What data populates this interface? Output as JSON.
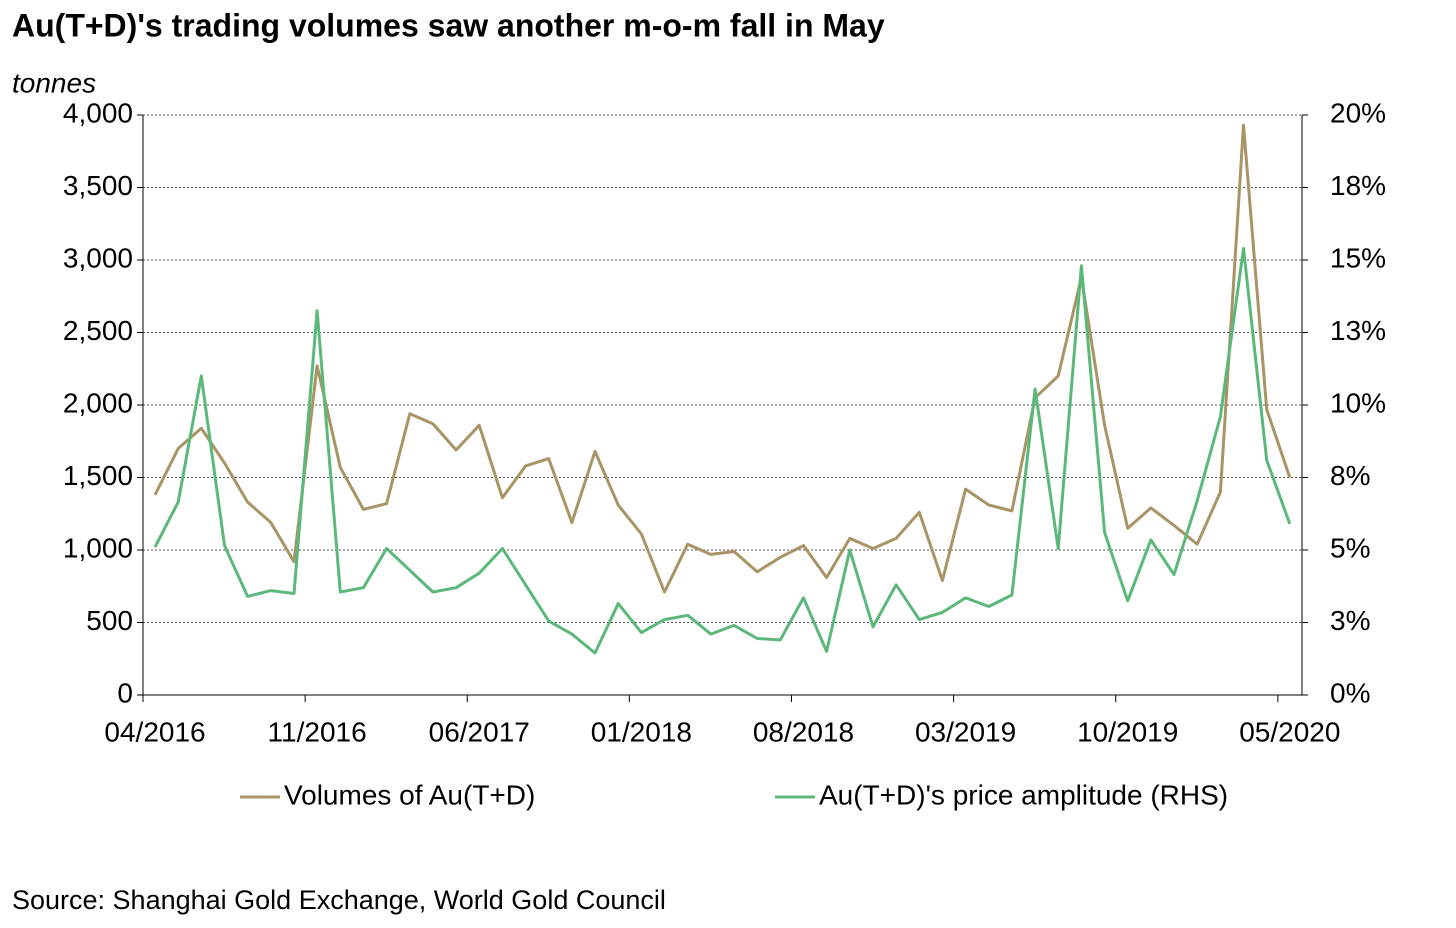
{
  "chart_data": {
    "type": "line",
    "title": "Au(T+D)'s trading volumes saw another m-o-m fall in May",
    "y_label": "tonnes",
    "source": "Source: Shanghai Gold Exchange, World Gold Council",
    "categories": [
      "04/2016",
      null,
      null,
      null,
      null,
      null,
      null,
      "11/2016",
      null,
      null,
      null,
      null,
      null,
      null,
      "06/2017",
      null,
      null,
      null,
      null,
      null,
      null,
      "01/2018",
      null,
      null,
      null,
      null,
      null,
      null,
      "08/2018",
      null,
      null,
      null,
      null,
      null,
      null,
      "03/2019",
      null,
      null,
      null,
      null,
      null,
      null,
      "10/2019",
      null,
      null,
      null,
      null,
      null,
      null,
      "05/2020"
    ],
    "series": [
      {
        "name": "Volumes of Au(T+D)",
        "color": "#a89465",
        "values": [
          1380,
          1700,
          1840,
          1600,
          1330,
          1190,
          920,
          2270,
          1570,
          1280,
          1320,
          1940,
          1870,
          1690,
          1860,
          1360,
          1580,
          1630,
          1190,
          1680,
          1310,
          1110,
          710,
          1040,
          970,
          990,
          850,
          950,
          1030,
          810,
          1080,
          1010,
          1080,
          1260,
          790,
          1420,
          1310,
          1270,
          2050,
          2200,
          2880,
          1860,
          1150,
          1290,
          1170,
          1040,
          1400,
          3930,
          1970,
          1500
        ]
      },
      {
        "name": "Au(T+D)'s price amplitude (RHS)",
        "color": "#5cb87a",
        "axis": "y2",
        "values": [
          5.1,
          6.65,
          11,
          5.15,
          3.4,
          3.6,
          3.5,
          13.25,
          3.55,
          3.7,
          5.05,
          4.3,
          3.55,
          3.7,
          4.2,
          5.05,
          3.8,
          2.55,
          2.1,
          1.45,
          3.15,
          2.15,
          2.6,
          2.75,
          2.1,
          2.4,
          1.95,
          1.9,
          3.35,
          1.5,
          5,
          2.35,
          3.8,
          2.6,
          2.85,
          3.35,
          3.05,
          3.45,
          10.55,
          5.05,
          14.8,
          5.6,
          3.25,
          5.35,
          4.15,
          6.7,
          9.6,
          15.4,
          8.1,
          5.9
        ]
      }
    ],
    "ylim": [
      0,
      4000
    ],
    "yticks": [
      0,
      500,
      {
        "value": 1000,
        "label": "1,000"
      },
      {
        "value": 1500,
        "label": "1,500"
      },
      {
        "value": 2000,
        "label": "2,000"
      },
      {
        "value": 2500,
        "label": "2,500"
      },
      {
        "value": 3000,
        "label": "3,000"
      },
      {
        "value": 3500,
        "label": "3,500"
      },
      {
        "value": 4000,
        "label": "4,000"
      }
    ],
    "y2lim": [
      0,
      20
    ],
    "y2ticks": [
      {
        "value": 0,
        "label": "0%"
      },
      {
        "value": 2.5,
        "label": "3%"
      },
      {
        "value": 5,
        "label": "5%"
      },
      {
        "value": 7.5,
        "label": "8%"
      },
      {
        "value": 10,
        "label": "10%"
      },
      {
        "value": 12.5,
        "label": "13%"
      },
      {
        "value": 15,
        "label": "15%"
      },
      {
        "value": 17.5,
        "label": "18%"
      },
      {
        "value": 20,
        "label": "20%"
      }
    ],
    "grid": true,
    "legend": "bottom"
  }
}
